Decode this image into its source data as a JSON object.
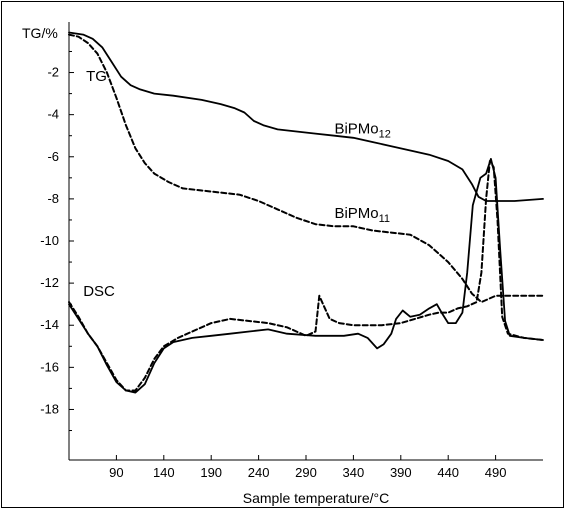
{
  "chart_data": {
    "type": "line",
    "xlabel": "Sample temperature/°C",
    "ylabel": "TG/%",
    "xlim": [
      40,
      540
    ],
    "ylim": [
      -20.4,
      0.4
    ],
    "x_ticks": [
      90,
      140,
      190,
      240,
      290,
      340,
      390,
      440,
      490
    ],
    "y_ticks": [
      -2,
      -4,
      -6,
      -8,
      -10,
      -12,
      -14,
      -16,
      -18
    ],
    "annotations": [
      {
        "text": "TG",
        "x": 58,
        "y": -2.4
      },
      {
        "text": "DSC",
        "x": 55,
        "y": -12.6
      },
      {
        "text": "BiPMo",
        "sub": "12",
        "x": 320,
        "y": -4.9
      },
      {
        "text": "BiPMo",
        "sub": "11",
        "x": 320,
        "y": -8.9
      }
    ],
    "series": [
      {
        "label": "BiPMo12 TG",
        "style": "solid",
        "points": [
          [
            40,
            -0.1
          ],
          [
            55,
            -0.2
          ],
          [
            65,
            -0.4
          ],
          [
            75,
            -0.8
          ],
          [
            85,
            -1.5
          ],
          [
            95,
            -2.2
          ],
          [
            105,
            -2.6
          ],
          [
            115,
            -2.8
          ],
          [
            130,
            -3.0
          ],
          [
            150,
            -3.1
          ],
          [
            180,
            -3.3
          ],
          [
            200,
            -3.5
          ],
          [
            215,
            -3.7
          ],
          [
            225,
            -3.9
          ],
          [
            235,
            -4.3
          ],
          [
            245,
            -4.5
          ],
          [
            260,
            -4.7
          ],
          [
            280,
            -4.8
          ],
          [
            300,
            -4.9
          ],
          [
            320,
            -5.0
          ],
          [
            340,
            -5.1
          ],
          [
            360,
            -5.3
          ],
          [
            380,
            -5.5
          ],
          [
            400,
            -5.7
          ],
          [
            420,
            -5.9
          ],
          [
            440,
            -6.2
          ],
          [
            455,
            -6.6
          ],
          [
            465,
            -7.3
          ],
          [
            472,
            -7.9
          ],
          [
            480,
            -8.1
          ],
          [
            490,
            -8.1
          ],
          [
            510,
            -8.1
          ],
          [
            540,
            -8.0
          ]
        ]
      },
      {
        "label": "BiPMo11 TG",
        "style": "dashed",
        "points": [
          [
            40,
            -0.2
          ],
          [
            50,
            -0.3
          ],
          [
            60,
            -0.6
          ],
          [
            70,
            -1.1
          ],
          [
            80,
            -2.0
          ],
          [
            90,
            -3.2
          ],
          [
            100,
            -4.5
          ],
          [
            110,
            -5.6
          ],
          [
            120,
            -6.3
          ],
          [
            130,
            -6.8
          ],
          [
            145,
            -7.2
          ],
          [
            160,
            -7.5
          ],
          [
            180,
            -7.6
          ],
          [
            200,
            -7.7
          ],
          [
            220,
            -7.8
          ],
          [
            240,
            -8.1
          ],
          [
            260,
            -8.5
          ],
          [
            280,
            -8.9
          ],
          [
            300,
            -9.2
          ],
          [
            320,
            -9.3
          ],
          [
            340,
            -9.3
          ],
          [
            360,
            -9.5
          ],
          [
            380,
            -9.6
          ],
          [
            400,
            -9.7
          ],
          [
            420,
            -10.2
          ],
          [
            440,
            -11.0
          ],
          [
            455,
            -11.8
          ],
          [
            465,
            -12.5
          ],
          [
            475,
            -12.9
          ],
          [
            490,
            -12.6
          ],
          [
            510,
            -12.6
          ],
          [
            540,
            -12.6
          ]
        ]
      },
      {
        "label": "BiPMo12 DSC",
        "style": "solid",
        "points": [
          [
            40,
            -13.0
          ],
          [
            50,
            -13.7
          ],
          [
            60,
            -14.4
          ],
          [
            70,
            -15.0
          ],
          [
            80,
            -15.9
          ],
          [
            90,
            -16.7
          ],
          [
            100,
            -17.1
          ],
          [
            110,
            -17.2
          ],
          [
            120,
            -16.8
          ],
          [
            130,
            -15.8
          ],
          [
            140,
            -15.1
          ],
          [
            150,
            -14.8
          ],
          [
            170,
            -14.6
          ],
          [
            190,
            -14.5
          ],
          [
            210,
            -14.4
          ],
          [
            230,
            -14.3
          ],
          [
            250,
            -14.2
          ],
          [
            270,
            -14.4
          ],
          [
            300,
            -14.5
          ],
          [
            330,
            -14.5
          ],
          [
            345,
            -14.4
          ],
          [
            355,
            -14.6
          ],
          [
            365,
            -15.1
          ],
          [
            372,
            -14.9
          ],
          [
            380,
            -14.4
          ],
          [
            385,
            -13.7
          ],
          [
            392,
            -13.3
          ],
          [
            400,
            -13.6
          ],
          [
            410,
            -13.5
          ],
          [
            420,
            -13.2
          ],
          [
            428,
            -13.0
          ],
          [
            433,
            -13.4
          ],
          [
            440,
            -13.9
          ],
          [
            448,
            -13.9
          ],
          [
            455,
            -13.4
          ],
          [
            460,
            -11.5
          ],
          [
            466,
            -8.3
          ],
          [
            474,
            -7.0
          ],
          [
            480,
            -6.8
          ],
          [
            485,
            -6.1
          ],
          [
            490,
            -7.0
          ],
          [
            495,
            -10.5
          ],
          [
            500,
            -13.8
          ],
          [
            505,
            -14.5
          ],
          [
            520,
            -14.6
          ],
          [
            540,
            -14.7
          ]
        ]
      },
      {
        "label": "BiPMo11 DSC",
        "style": "dashed",
        "points": [
          [
            40,
            -12.9
          ],
          [
            50,
            -13.6
          ],
          [
            60,
            -14.4
          ],
          [
            70,
            -15.0
          ],
          [
            80,
            -15.8
          ],
          [
            90,
            -16.6
          ],
          [
            100,
            -17.1
          ],
          [
            110,
            -17.1
          ],
          [
            120,
            -16.5
          ],
          [
            130,
            -15.6
          ],
          [
            140,
            -15.0
          ],
          [
            155,
            -14.6
          ],
          [
            170,
            -14.3
          ],
          [
            190,
            -13.9
          ],
          [
            210,
            -13.7
          ],
          [
            230,
            -13.8
          ],
          [
            250,
            -13.9
          ],
          [
            270,
            -14.1
          ],
          [
            290,
            -14.5
          ],
          [
            300,
            -14.3
          ],
          [
            304,
            -12.6
          ],
          [
            309,
            -13.1
          ],
          [
            315,
            -13.7
          ],
          [
            325,
            -13.9
          ],
          [
            340,
            -14.0
          ],
          [
            370,
            -14.0
          ],
          [
            390,
            -13.9
          ],
          [
            405,
            -13.7
          ],
          [
            420,
            -13.5
          ],
          [
            430,
            -13.4
          ],
          [
            440,
            -13.4
          ],
          [
            450,
            -13.2
          ],
          [
            460,
            -13.1
          ],
          [
            470,
            -12.9
          ],
          [
            475,
            -11.5
          ],
          [
            480,
            -8.0
          ],
          [
            484,
            -6.2
          ],
          [
            488,
            -6.5
          ],
          [
            492,
            -9.0
          ],
          [
            497,
            -13.6
          ],
          [
            503,
            -14.4
          ],
          [
            520,
            -14.6
          ],
          [
            540,
            -14.7
          ]
        ]
      }
    ]
  }
}
